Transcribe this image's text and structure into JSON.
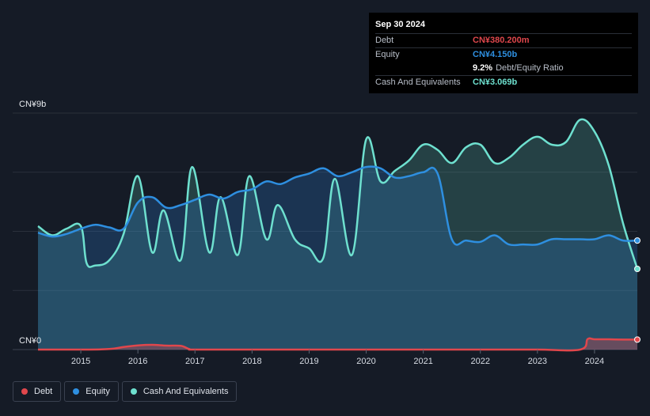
{
  "tooltip": {
    "date": "Sep 30 2024",
    "debt_label": "Debt",
    "debt_value": "CN¥380.200m",
    "equity_label": "Equity",
    "equity_value": "CN¥4.150b",
    "ratio_value": "9.2%",
    "ratio_label": "Debt/Equity Ratio",
    "cash_label": "Cash And Equivalents",
    "cash_value": "CN¥3.069b"
  },
  "legend": [
    {
      "name": "Debt",
      "color": "#e0474c"
    },
    {
      "name": "Equity",
      "color": "#2e8fe0"
    },
    {
      "name": "Cash And Equivalents",
      "color": "#6ee0cf"
    }
  ],
  "chart_data": {
    "type": "area",
    "ylim": [
      0,
      9
    ],
    "y_unit": "CN¥ billions",
    "y_top_label": "CN¥9b",
    "y_bottom_label": "CN¥0",
    "x_ticks": [
      "2015",
      "2016",
      "2017",
      "2018",
      "2019",
      "2020",
      "2021",
      "2022",
      "2023",
      "2024"
    ],
    "x_range": [
      2014.25,
      2024.75
    ],
    "series": [
      {
        "name": "Debt",
        "color": "#e0474c",
        "points": [
          [
            2014.25,
            0.0
          ],
          [
            2015.0,
            0.0
          ],
          [
            2015.5,
            0.02
          ],
          [
            2015.75,
            0.1
          ],
          [
            2016.0,
            0.16
          ],
          [
            2016.25,
            0.18
          ],
          [
            2016.5,
            0.15
          ],
          [
            2016.75,
            0.14
          ],
          [
            2016.9,
            0.02
          ],
          [
            2017.0,
            0.0
          ],
          [
            2018.0,
            0.0
          ],
          [
            2020.0,
            0.0
          ],
          [
            2022.0,
            0.0
          ],
          [
            2023.0,
            0.0
          ],
          [
            2023.75,
            0.0
          ],
          [
            2023.88,
            0.4
          ],
          [
            2024.0,
            0.39
          ],
          [
            2024.25,
            0.39
          ],
          [
            2024.5,
            0.38
          ],
          [
            2024.75,
            0.38
          ]
        ]
      },
      {
        "name": "Equity",
        "color": "#2e8fe0",
        "points": [
          [
            2014.25,
            4.45
          ],
          [
            2014.5,
            4.3
          ],
          [
            2014.75,
            4.4
          ],
          [
            2015.0,
            4.6
          ],
          [
            2015.25,
            4.75
          ],
          [
            2015.5,
            4.65
          ],
          [
            2015.75,
            4.6
          ],
          [
            2016.0,
            5.6
          ],
          [
            2016.25,
            5.8
          ],
          [
            2016.5,
            5.4
          ],
          [
            2016.75,
            5.5
          ],
          [
            2017.0,
            5.7
          ],
          [
            2017.25,
            5.9
          ],
          [
            2017.5,
            5.75
          ],
          [
            2017.75,
            6.0
          ],
          [
            2018.0,
            6.1
          ],
          [
            2018.25,
            6.4
          ],
          [
            2018.5,
            6.3
          ],
          [
            2018.75,
            6.55
          ],
          [
            2019.0,
            6.7
          ],
          [
            2019.25,
            6.9
          ],
          [
            2019.5,
            6.6
          ],
          [
            2019.75,
            6.75
          ],
          [
            2020.0,
            6.95
          ],
          [
            2020.25,
            6.9
          ],
          [
            2020.5,
            6.55
          ],
          [
            2020.75,
            6.6
          ],
          [
            2021.0,
            6.75
          ],
          [
            2021.25,
            6.7
          ],
          [
            2021.5,
            4.2
          ],
          [
            2021.75,
            4.15
          ],
          [
            2022.0,
            4.1
          ],
          [
            2022.25,
            4.35
          ],
          [
            2022.5,
            4.0
          ],
          [
            2022.75,
            4.0
          ],
          [
            2023.0,
            4.0
          ],
          [
            2023.25,
            4.2
          ],
          [
            2023.5,
            4.2
          ],
          [
            2023.75,
            4.2
          ],
          [
            2024.0,
            4.2
          ],
          [
            2024.25,
            4.35
          ],
          [
            2024.5,
            4.15
          ],
          [
            2024.75,
            4.15
          ]
        ]
      },
      {
        "name": "Cash And Equivalents",
        "color": "#6ee0cf",
        "points": [
          [
            2014.25,
            4.7
          ],
          [
            2014.5,
            4.35
          ],
          [
            2014.75,
            4.6
          ],
          [
            2015.0,
            4.7
          ],
          [
            2015.1,
            3.3
          ],
          [
            2015.25,
            3.2
          ],
          [
            2015.5,
            3.4
          ],
          [
            2015.75,
            4.4
          ],
          [
            2016.0,
            6.6
          ],
          [
            2016.25,
            3.7
          ],
          [
            2016.45,
            5.3
          ],
          [
            2016.75,
            3.4
          ],
          [
            2016.95,
            6.95
          ],
          [
            2017.25,
            3.7
          ],
          [
            2017.45,
            5.8
          ],
          [
            2017.75,
            3.6
          ],
          [
            2017.95,
            6.6
          ],
          [
            2018.25,
            4.2
          ],
          [
            2018.45,
            5.5
          ],
          [
            2018.75,
            4.2
          ],
          [
            2019.0,
            3.85
          ],
          [
            2019.25,
            3.5
          ],
          [
            2019.45,
            6.5
          ],
          [
            2019.75,
            3.6
          ],
          [
            2020.0,
            8.0
          ],
          [
            2020.25,
            6.4
          ],
          [
            2020.5,
            6.8
          ],
          [
            2020.75,
            7.2
          ],
          [
            2021.0,
            7.8
          ],
          [
            2021.25,
            7.6
          ],
          [
            2021.5,
            7.1
          ],
          [
            2021.75,
            7.7
          ],
          [
            2022.0,
            7.8
          ],
          [
            2022.25,
            7.1
          ],
          [
            2022.5,
            7.3
          ],
          [
            2022.75,
            7.8
          ],
          [
            2023.0,
            8.1
          ],
          [
            2023.25,
            7.8
          ],
          [
            2023.5,
            7.9
          ],
          [
            2023.75,
            8.75
          ],
          [
            2024.0,
            8.3
          ],
          [
            2024.25,
            7.0
          ],
          [
            2024.5,
            4.8
          ],
          [
            2024.75,
            3.07
          ]
        ]
      }
    ]
  }
}
